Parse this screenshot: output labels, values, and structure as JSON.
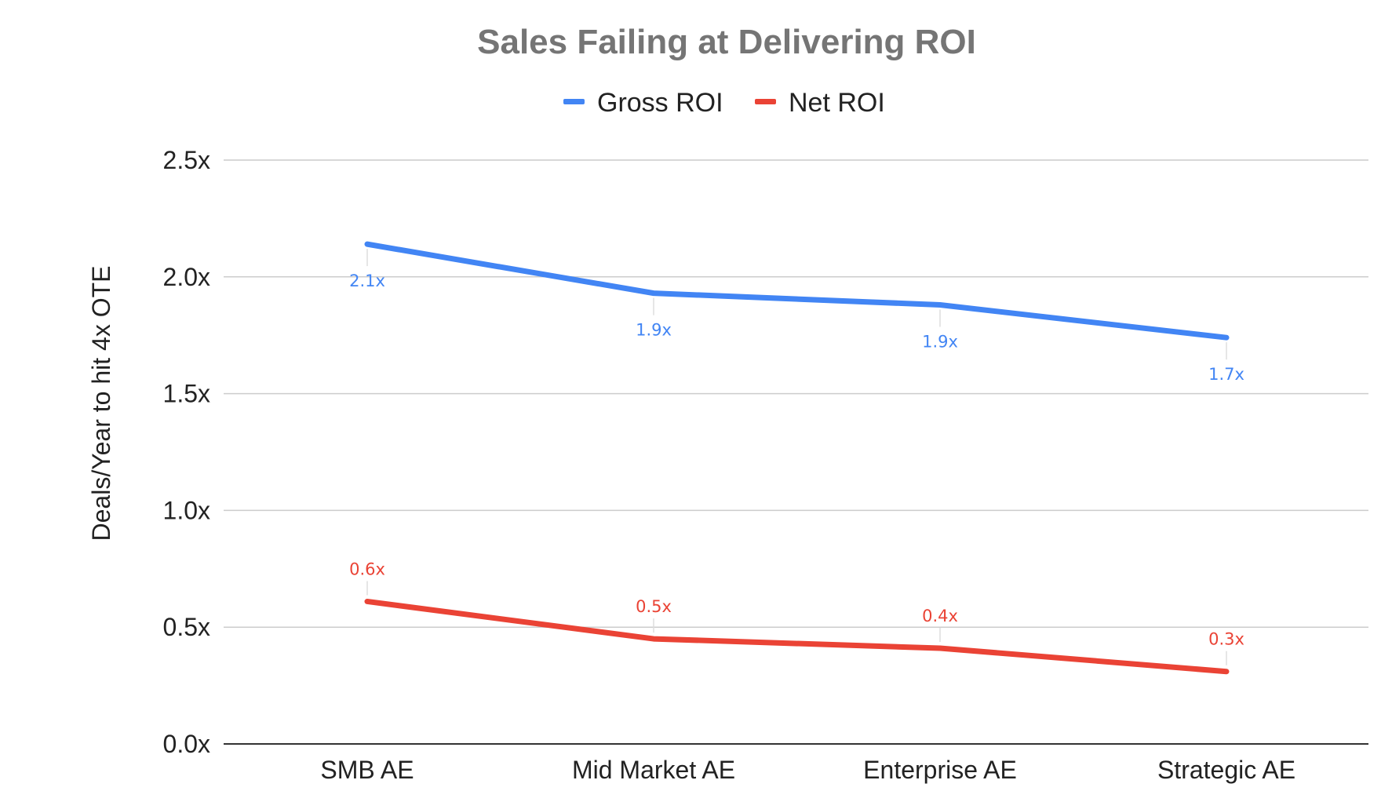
{
  "chart_data": {
    "type": "line",
    "title": "Sales Failing at Delivering ROI",
    "ylabel": "Deals/Year to hit 4x OTE",
    "xlabel": "",
    "categories": [
      "SMB AE",
      "Mid Market AE",
      "Enterprise AE",
      "Strategic AE"
    ],
    "ylim": [
      0,
      2.5
    ],
    "yticks": [
      0,
      0.5,
      1.0,
      1.5,
      2.0,
      2.5
    ],
    "ytick_labels": [
      "0.0x",
      "0.5x",
      "1.0x",
      "1.5x",
      "2.0x",
      "2.5x"
    ],
    "grid": true,
    "legend_position": "top",
    "series": [
      {
        "name": "Gross ROI",
        "color": "#4285f4",
        "values": [
          2.14,
          1.93,
          1.88,
          1.74
        ],
        "labels": [
          "2.1x",
          "1.9x",
          "1.9x",
          "1.7x"
        ],
        "label_position": "below"
      },
      {
        "name": "Net ROI",
        "color": "#ea4335",
        "values": [
          0.61,
          0.45,
          0.41,
          0.31
        ],
        "labels": [
          "0.6x",
          "0.5x",
          "0.4x",
          "0.3x"
        ],
        "label_position": "above"
      }
    ]
  }
}
